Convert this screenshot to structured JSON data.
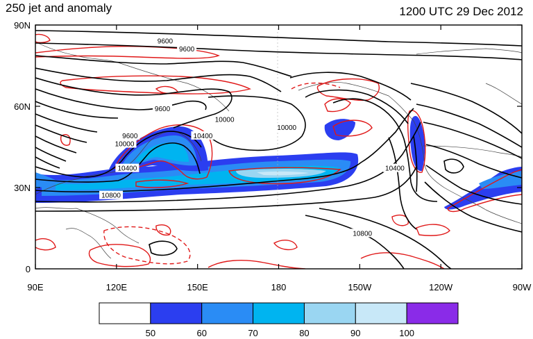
{
  "header": {
    "left_title": "250 jet and anomaly",
    "right_title": "1200 UTC 29 Dec 2012"
  },
  "axes": {
    "x_ticks": [
      "90E",
      "120E",
      "150E",
      "180",
      "150W",
      "120W",
      "90W"
    ],
    "y_ticks": [
      "90N",
      "60N",
      "30N",
      "0"
    ]
  },
  "contour_labels": [
    {
      "text": "9600",
      "lon": 138,
      "lat": 84
    },
    {
      "text": "9600",
      "lon": 146,
      "lat": 81
    },
    {
      "text": "9600",
      "lon": 137,
      "lat": 59
    },
    {
      "text": "9600",
      "lon": 125,
      "lat": 49
    },
    {
      "text": "10000",
      "lon": 160,
      "lat": 55
    },
    {
      "text": "10000",
      "lon": 123,
      "lat": 46
    },
    {
      "text": "10400",
      "lon": 124,
      "lat": 37
    },
    {
      "text": "10400",
      "lon": 152,
      "lat": 49
    },
    {
      "text": "10000",
      "lon": 183,
      "lat": 52
    },
    {
      "text": "10800",
      "lon": 118,
      "lat": 27
    },
    {
      "text": "10400",
      "lon": 223,
      "lat": 37
    },
    {
      "text": "10800",
      "lon": 211,
      "lat": 13
    }
  ],
  "colorbar": {
    "colors": [
      "#ffffff",
      "#2b3ef0",
      "#2a8cf5",
      "#00b4f0",
      "#9ad6f2",
      "#c8e8f8",
      "#8a2be8"
    ],
    "labels": [
      "50",
      "60",
      "70",
      "80",
      "90",
      "100"
    ]
  },
  "colors": {
    "geopotential_contour": "#000000",
    "anomaly_contour": "#e01818",
    "coastline": "#444444"
  }
}
